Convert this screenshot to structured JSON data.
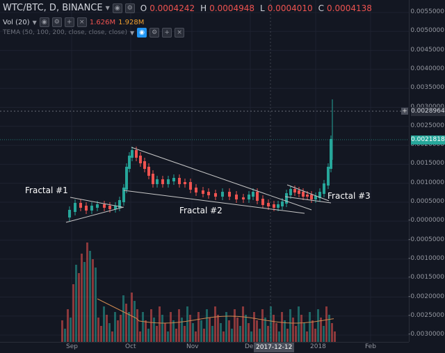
{
  "header": {
    "symbol": "WTC/BTC, D, BINANCE",
    "ohlc": {
      "o_label": "O",
      "o": "0.0004242",
      "h_label": "H",
      "h": "0.0004948",
      "l_label": "L",
      "l": "0.0004010",
      "c_label": "C",
      "c": "0.0004138"
    },
    "volume": {
      "label": "Vol (20)",
      "value_a": "1.626M",
      "value_b": "1.928M"
    },
    "tema": "TEMA (50, 100, 200, close, close, close)"
  },
  "annotations": {
    "fractal_1": "Fractal #1",
    "fractal_2": "Fractal #2",
    "fractal_3": "Fractal #3"
  },
  "price_axis": {
    "ticks": [
      "0.0055000",
      "0.0050000",
      "0.0045000",
      "0.0040000",
      "0.0035000",
      "0.0030000",
      "0.0025000",
      "0.0020000",
      "0.0015000",
      "0.0010000",
      "0.0005000",
      "-0.0000000",
      "-0.0005000",
      "-0.0010000",
      "-0.0015000",
      "-0.0020000",
      "-0.0025000",
      "-0.0030000"
    ],
    "crosshair_price": "0.0028964",
    "last_price": "0.0021818",
    "last_price_color": "#26a69a"
  },
  "time_axis": {
    "labels": [
      "Sep",
      "Oct",
      "Nov",
      "Dec",
      "2018",
      "Feb"
    ],
    "cursor_date": "2017-12-12"
  },
  "colors": {
    "up": "#26a69a",
    "down": "#ef5350",
    "background": "#131722",
    "trendline": "#c8c8c8",
    "tema": "#d08a50"
  }
}
